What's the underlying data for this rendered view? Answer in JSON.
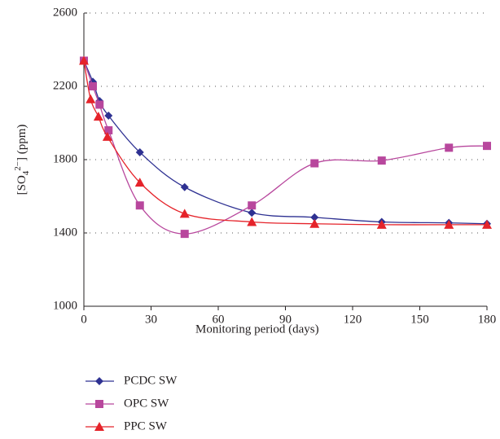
{
  "chart_data": {
    "type": "line",
    "y_label": {
      "base": "[SO",
      "sub": "4",
      "sup": "2−",
      "rest": "] (ppm)"
    },
    "x_label": "Monitoring period (days)",
    "xlim": [
      0,
      180
    ],
    "xticks": [
      0,
      30,
      60,
      90,
      120,
      150,
      180
    ],
    "ylim": [
      1000,
      2600
    ],
    "yticks": [
      1000,
      1400,
      1800,
      2200,
      2600
    ],
    "grid": true,
    "legend": "bottom",
    "series": [
      {
        "name": "PCDC SW",
        "color": "#2e3192",
        "marker": "diamond",
        "x": [
          0,
          4,
          7,
          11,
          25,
          45,
          75,
          103,
          133,
          163,
          180
        ],
        "values": [
          2340,
          2225,
          2120,
          2040,
          1840,
          1650,
          1510,
          1485,
          1460,
          1455,
          1450
        ]
      },
      {
        "name": "OPC SW",
        "color": "#b8479d",
        "marker": "square",
        "x": [
          0,
          4,
          7,
          11,
          25,
          45,
          75,
          103,
          133,
          163,
          180
        ],
        "values": [
          2340,
          2200,
          2100,
          1960,
          1550,
          1395,
          1550,
          1780,
          1795,
          1865,
          1875
        ]
      },
      {
        "name": "PPC SW",
        "color": "#e5232a",
        "marker": "triangle",
        "x": [
          0,
          3,
          6.5,
          10.5,
          25,
          45,
          75,
          103,
          133,
          163,
          180
        ],
        "values": [
          2340,
          2130,
          2035,
          1925,
          1675,
          1505,
          1460,
          1450,
          1445,
          1445,
          1445
        ]
      }
    ]
  }
}
